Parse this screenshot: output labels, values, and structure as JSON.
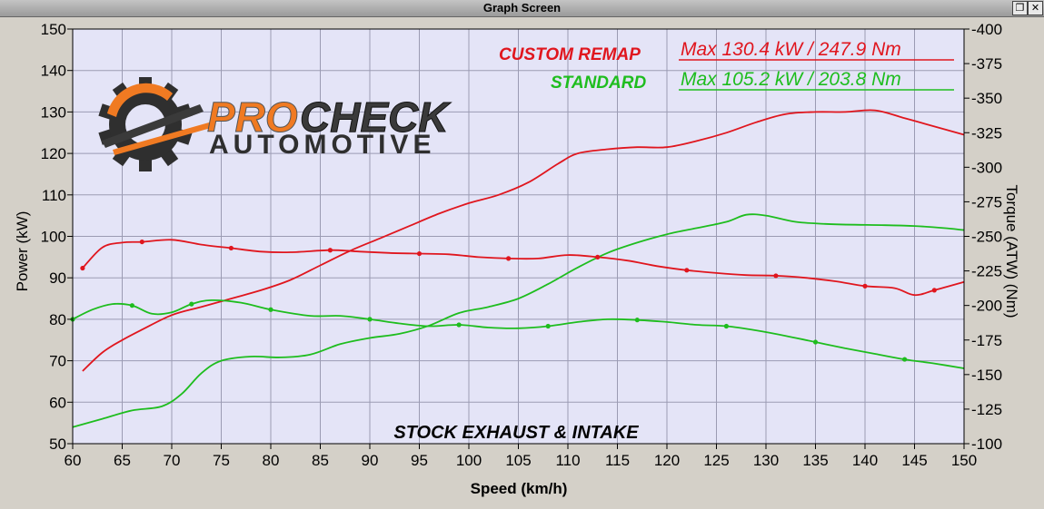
{
  "window": {
    "title": "Graph Screen",
    "restore_icon": "restore-window-icon",
    "close_icon": "close-window-icon"
  },
  "logo": {
    "line1_orange": "PRO",
    "line1_dark": "CHECK",
    "line2": "AUTOMOTIVE"
  },
  "annotations": {
    "custom_label": "CUSTOM REMAP",
    "custom_max": "Max 130.4 kW  / 247.9 Nm",
    "standard_label": "STANDARD",
    "standard_max": "Max 105.2 kW  / 203.8 Nm",
    "caption": "STOCK EXHAUST & INTAKE"
  },
  "colors": {
    "plot_bg": "#e4e4f7",
    "grid": "#9b9bb3",
    "custom": "#e0161e",
    "standard": "#1ebd1e",
    "logo_orange": "#f07a22",
    "logo_dark": "#3a3a3a"
  },
  "chart_data": {
    "type": "line",
    "xlabel": "Speed (km/h)",
    "ylabel": "Power (kW)",
    "y2label": "Torque (ATW) (Nm)",
    "xlim": [
      60,
      150
    ],
    "ylim": [
      50,
      150
    ],
    "y2lim": [
      100,
      400
    ],
    "grid": true,
    "xticks": [
      "60",
      "65",
      "70",
      "75",
      "80",
      "85",
      "90",
      "95",
      "100",
      "105",
      "110",
      "115",
      "120",
      "125",
      "130",
      "135",
      "140",
      "145",
      "150"
    ],
    "yticks": [
      "50",
      "60",
      "70",
      "80",
      "90",
      "100",
      "110",
      "120",
      "130",
      "140",
      "150"
    ],
    "y2ticks": [
      "100",
      "125",
      "150",
      "175",
      "200",
      "225",
      "250",
      "275",
      "300",
      "325",
      "350",
      "375",
      "400"
    ],
    "series": [
      {
        "name": "CUSTOM REMAP",
        "quantity": "power",
        "axis": "left",
        "x": [
          61,
          63,
          65,
          67,
          70,
          73,
          76,
          79,
          82,
          85,
          88,
          91,
          94,
          97,
          100,
          103,
          106,
          109,
          111,
          114,
          117,
          120,
          123,
          126,
          129,
          132,
          135,
          138,
          141,
          144,
          147,
          150
        ],
        "y": [
          67.5,
          72,
          75,
          77.5,
          81,
          83,
          85,
          87,
          89.5,
          93,
          96.5,
          99.5,
          102.5,
          105.5,
          108,
          110,
          113,
          117.5,
          120,
          121,
          121.5,
          121.5,
          123,
          125,
          127.5,
          129.5,
          130,
          130,
          130.4,
          128.5,
          126.5,
          124.5
        ]
      },
      {
        "name": "CUSTOM REMAP",
        "quantity": "torque",
        "axis": "right",
        "x": [
          61,
          63,
          65,
          67,
          70,
          73,
          76,
          79,
          82,
          86,
          89,
          92,
          95,
          98,
          101,
          104,
          107,
          110,
          113,
          116,
          119,
          122,
          125,
          128,
          131,
          134,
          137,
          140,
          143,
          145,
          147,
          150
        ],
        "y": [
          227,
          242,
          245.5,
          246,
          247.5,
          244,
          241.5,
          239,
          238.5,
          240,
          239,
          238,
          237.5,
          237,
          235,
          234,
          234,
          236.5,
          235,
          232.5,
          228.5,
          225.5,
          223.5,
          222,
          221.5,
          220,
          217.5,
          214,
          212.5,
          207.5,
          211,
          217
        ]
      },
      {
        "name": "STANDARD",
        "quantity": "power",
        "axis": "left",
        "x": [
          60,
          63,
          66,
          69,
          71,
          73,
          75,
          78,
          81,
          84,
          87,
          90,
          93,
          96,
          99,
          102,
          105,
          108,
          111,
          114,
          117,
          120,
          123,
          126,
          128,
          130,
          133,
          136,
          139,
          142,
          145,
          148,
          150
        ],
        "y": [
          54,
          56,
          58,
          59,
          62,
          67,
          70,
          71,
          70.8,
          71.5,
          74,
          75.5,
          76.5,
          78.5,
          81.5,
          83,
          85,
          88.5,
          92.5,
          96,
          98.5,
          100.5,
          102,
          103.5,
          105.2,
          105,
          103.5,
          103,
          102.8,
          102.7,
          102.5,
          102,
          101.5
        ]
      },
      {
        "name": "STANDARD",
        "quantity": "torque",
        "axis": "right",
        "x": [
          60,
          62,
          64,
          66,
          68,
          70,
          72,
          74,
          77,
          80,
          84,
          87,
          90,
          93,
          96,
          99,
          102,
          105,
          108,
          111,
          114,
          117,
          120,
          123,
          126,
          129,
          132,
          135,
          138,
          141,
          144,
          147,
          150
        ],
        "y": [
          190,
          197,
          201,
          200,
          194,
          195,
          201,
          203.8,
          202,
          197,
          192.5,
          192.5,
          190,
          187,
          185,
          186,
          184,
          183.5,
          185,
          188,
          190,
          189.5,
          188,
          186,
          185,
          182,
          178,
          173.5,
          169,
          165,
          161,
          158,
          154.5
        ]
      }
    ]
  }
}
